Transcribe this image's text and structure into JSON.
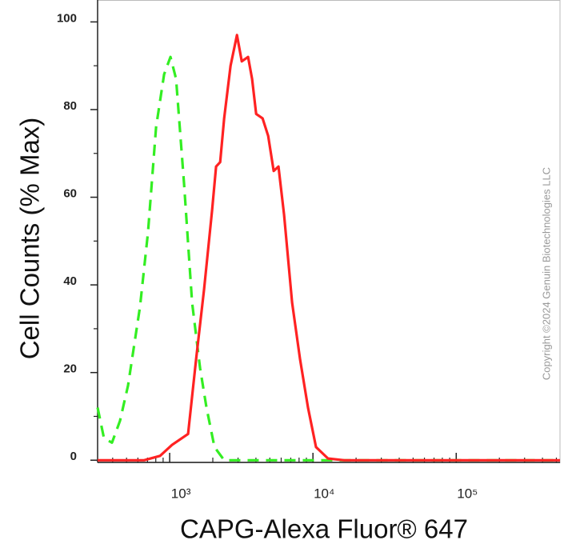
{
  "chart_data": {
    "type": "line",
    "xlabel": "CAPG-Alexa Fluor® 647",
    "ylabel": "Cell Counts (% Max)",
    "watermark": "Copyright ©2024 Genuin Biotechnologies LLC",
    "xscale": "log",
    "xlim": [
      314,
      530000
    ],
    "ylim": [
      -0.5,
      105
    ],
    "xticks": [
      {
        "value": 1000,
        "label": "10³"
      },
      {
        "value": 10000,
        "label": "10⁴"
      },
      {
        "value": 100000,
        "label": "10⁵"
      }
    ],
    "xminorticks": [
      400,
      500,
      600,
      700,
      800,
      900,
      2000,
      3000,
      4000,
      5000,
      6000,
      7000,
      8000,
      9000,
      20000,
      30000,
      40000,
      50000,
      60000,
      70000,
      80000,
      90000,
      200000,
      300000,
      400000,
      500000
    ],
    "yticks": [
      0,
      20,
      40,
      60,
      80,
      100
    ],
    "yminorticks": [
      10,
      30,
      50,
      70,
      90
    ],
    "series": [
      {
        "color": "#33ee22",
        "dashed": true,
        "x": [
          314,
          348,
          396,
          450,
          512,
          621,
          706,
          804,
          914,
          1013,
          1108,
          1260,
          1434,
          1631,
          1807,
          2055,
          2399,
          11220,
          530000
        ],
        "values": [
          12,
          5,
          4,
          9,
          17,
          35,
          52,
          76,
          88,
          92,
          87,
          63,
          36,
          21,
          12,
          3,
          0,
          0,
          0
        ]
      },
      {
        "color": "#ff2222",
        "dashed": false,
        "x": [
          314,
          663,
          857,
          1039,
          1344,
          1529,
          1739,
          1978,
          2109,
          2250,
          2399,
          2659,
          2948,
          3184,
          3526,
          3761,
          4012,
          4447,
          4866,
          5323,
          5745,
          6286,
          7147,
          8126,
          9240,
          10506,
          12740,
          16520,
          530000
        ],
        "values": [
          0,
          0,
          1,
          3.5,
          6,
          23,
          39,
          57,
          67,
          68,
          78,
          90,
          97,
          91,
          92,
          87,
          79,
          78,
          74,
          66,
          67,
          56,
          36,
          23,
          12,
          3,
          0.4,
          0,
          0
        ]
      }
    ]
  }
}
